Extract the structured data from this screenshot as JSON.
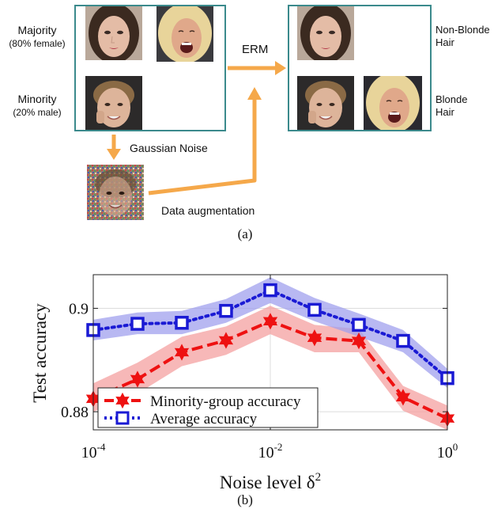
{
  "panel_a": {
    "groups": {
      "majority": {
        "name": "Majority",
        "detail": "(80% female)"
      },
      "minority": {
        "name": "Minority",
        "detail": "(20% male)"
      }
    },
    "labels": {
      "erm": "ERM",
      "noise": "Gaussian Noise",
      "augmentation": "Data augmentation",
      "non_blonde": [
        "Non-Blonde",
        "Hair"
      ],
      "blonde": [
        "Blonde",
        "Hair"
      ]
    },
    "caption": "(a)"
  },
  "panel_b": {
    "caption": "(b)",
    "legend": {
      "minority": "Minority-group accuracy",
      "average": "Average accuracy"
    }
  },
  "chart_data": {
    "type": "line",
    "xlabel": "Noise level δ",
    "xlabel_sup": "2",
    "ylabel": "Test accuracy",
    "xscale": "log",
    "xlim": [
      0.0001,
      1
    ],
    "ylim": [
      0.8765,
      0.9065
    ],
    "x": [
      0.0001,
      0.000316,
      0.001,
      0.00316,
      0.01,
      0.0316,
      0.1,
      0.316,
      1
    ],
    "xticks": [
      {
        "value": 0.0001,
        "base": "10",
        "exp": "-4"
      },
      {
        "value": 0.01,
        "base": "10",
        "exp": "-2"
      },
      {
        "value": 1,
        "base": "10",
        "exp": "0"
      }
    ],
    "yticks": [
      {
        "value": 0.88,
        "label": "0.88"
      },
      {
        "value": 0.9,
        "label": "0.9"
      }
    ],
    "grid": true,
    "legend_position": "bottom-left",
    "series": [
      {
        "name": "Minority-group accuracy",
        "color": "#ee1111",
        "band_color": "#f4a0a0",
        "line_style": "dashed",
        "marker": "star",
        "values": [
          0.8825,
          0.8863,
          0.8915,
          0.8938,
          0.8975,
          0.8943,
          0.8937,
          0.8828,
          0.8787
        ],
        "upper": [
          0.8855,
          0.8895,
          0.8945,
          0.8965,
          0.9005,
          0.8968,
          0.896,
          0.885,
          0.8812
        ],
        "lower": [
          0.88,
          0.8835,
          0.8888,
          0.891,
          0.895,
          0.8915,
          0.8915,
          0.8802,
          0.8765
        ]
      },
      {
        "name": "Average accuracy",
        "color": "#1a1ad4",
        "band_color": "#a0a0ee",
        "line_style": "dotted",
        "marker": "square",
        "values": [
          0.8958,
          0.897,
          0.8972,
          0.8995,
          0.9035,
          0.8997,
          0.8968,
          0.8937,
          0.8865
        ],
        "upper": [
          0.8978,
          0.8992,
          0.8995,
          0.9018,
          0.906,
          0.902,
          0.899,
          0.8958,
          0.8883
        ],
        "lower": [
          0.8938,
          0.895,
          0.895,
          0.8972,
          0.901,
          0.8975,
          0.8945,
          0.8915,
          0.8846
        ]
      }
    ]
  }
}
